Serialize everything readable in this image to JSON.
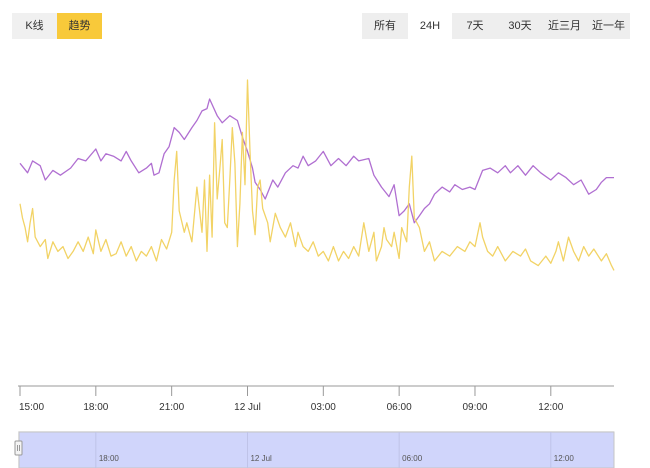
{
  "mode_toggle": {
    "items": [
      {
        "label": "K线",
        "active": false
      },
      {
        "label": "趋势",
        "active": true
      }
    ]
  },
  "range_tabs": {
    "items": [
      {
        "label": "所有",
        "active": false
      },
      {
        "label": "24H",
        "active": true
      },
      {
        "label": "7天",
        "active": false
      },
      {
        "label": "30天",
        "active": false
      },
      {
        "label": "近三月",
        "active": false
      },
      {
        "label": "近一年",
        "active": false
      }
    ]
  },
  "colors": {
    "series_purple": "#b06fd1",
    "series_yellow": "#f2d366",
    "active_tab": "#f8c93a",
    "navigator_fill": "#d0d5fb"
  },
  "chart_data": {
    "type": "line",
    "title": "",
    "xlabel": "",
    "ylabel": "",
    "x_range": [
      15,
      38.5
    ],
    "ylim": [
      0,
      100
    ],
    "legend": "none",
    "grid": false,
    "x_ticks": [
      {
        "label": "15:00",
        "x": 15
      },
      {
        "label": "18:00",
        "x": 18
      },
      {
        "label": "21:00",
        "x": 21
      },
      {
        "label": "12 Jul",
        "x": 24
      },
      {
        "label": "03:00",
        "x": 27
      },
      {
        "label": "06:00",
        "x": 30
      },
      {
        "label": "09:00",
        "x": 33
      },
      {
        "label": "12:00",
        "x": 36
      }
    ],
    "series": [
      {
        "color": "#b06fd1",
        "points": [
          [
            15,
            65
          ],
          [
            15.3,
            61
          ],
          [
            15.5,
            66
          ],
          [
            15.8,
            64
          ],
          [
            16,
            58
          ],
          [
            16.3,
            62
          ],
          [
            16.6,
            60
          ],
          [
            17,
            63
          ],
          [
            17.3,
            67
          ],
          [
            17.6,
            66
          ],
          [
            18,
            71
          ],
          [
            18.2,
            66
          ],
          [
            18.4,
            69
          ],
          [
            18.7,
            68
          ],
          [
            19,
            66
          ],
          [
            19.2,
            70
          ],
          [
            19.4,
            66
          ],
          [
            19.7,
            61
          ],
          [
            20,
            63
          ],
          [
            20.2,
            65
          ],
          [
            20.3,
            60
          ],
          [
            20.5,
            61
          ],
          [
            20.7,
            69
          ],
          [
            20.9,
            72
          ],
          [
            21.1,
            80
          ],
          [
            21.3,
            78
          ],
          [
            21.5,
            75
          ],
          [
            21.8,
            80
          ],
          [
            22,
            83
          ],
          [
            22.2,
            87
          ],
          [
            22.4,
            88
          ],
          [
            22.5,
            92
          ],
          [
            22.8,
            85
          ],
          [
            23,
            82
          ],
          [
            23.3,
            85
          ],
          [
            23.6,
            83
          ],
          [
            23.8,
            76
          ],
          [
            24,
            70
          ],
          [
            24.2,
            63
          ],
          [
            24.3,
            57
          ],
          [
            24.5,
            54
          ],
          [
            24.7,
            50
          ],
          [
            25,
            58
          ],
          [
            25.2,
            55
          ],
          [
            25.5,
            61
          ],
          [
            25.8,
            64
          ],
          [
            26,
            63
          ],
          [
            26.2,
            68
          ],
          [
            26.4,
            64
          ],
          [
            26.7,
            66
          ],
          [
            27,
            70
          ],
          [
            27.3,
            64
          ],
          [
            27.6,
            67
          ],
          [
            27.9,
            64
          ],
          [
            28.2,
            68
          ],
          [
            28.4,
            66
          ],
          [
            28.8,
            67
          ],
          [
            29,
            60
          ],
          [
            29.3,
            55
          ],
          [
            29.6,
            51
          ],
          [
            29.8,
            56
          ],
          [
            30,
            43
          ],
          [
            30.2,
            45
          ],
          [
            30.4,
            48
          ],
          [
            30.6,
            40
          ],
          [
            30.8,
            43
          ],
          [
            31,
            46
          ],
          [
            31.2,
            48
          ],
          [
            31.4,
            52
          ],
          [
            31.7,
            55
          ],
          [
            32,
            53
          ],
          [
            32.2,
            56
          ],
          [
            32.5,
            54
          ],
          [
            32.8,
            55
          ],
          [
            33,
            54
          ],
          [
            33.3,
            62
          ],
          [
            33.6,
            63
          ],
          [
            33.9,
            61
          ],
          [
            34.2,
            64
          ],
          [
            34.4,
            61
          ],
          [
            34.7,
            64
          ],
          [
            35,
            60
          ],
          [
            35.3,
            64
          ],
          [
            35.6,
            61
          ],
          [
            36,
            58
          ],
          [
            36.3,
            61
          ],
          [
            36.6,
            59
          ],
          [
            36.9,
            56
          ],
          [
            37.2,
            58
          ],
          [
            37.5,
            52
          ],
          [
            37.8,
            54
          ],
          [
            38,
            57
          ],
          [
            38.2,
            59
          ],
          [
            38.5,
            59
          ]
        ]
      },
      {
        "color": "#f2d366",
        "points": [
          [
            15,
            48
          ],
          [
            15.1,
            42
          ],
          [
            15.2,
            38
          ],
          [
            15.3,
            32
          ],
          [
            15.4,
            40
          ],
          [
            15.5,
            46
          ],
          [
            15.6,
            34
          ],
          [
            15.8,
            30
          ],
          [
            16,
            33
          ],
          [
            16.1,
            25
          ],
          [
            16.3,
            32
          ],
          [
            16.5,
            28
          ],
          [
            16.7,
            30
          ],
          [
            16.9,
            25
          ],
          [
            17.1,
            28
          ],
          [
            17.3,
            32
          ],
          [
            17.5,
            28
          ],
          [
            17.7,
            34
          ],
          [
            17.9,
            27
          ],
          [
            18,
            37
          ],
          [
            18.2,
            28
          ],
          [
            18.4,
            33
          ],
          [
            18.6,
            26
          ],
          [
            18.8,
            27
          ],
          [
            19,
            32
          ],
          [
            19.2,
            26
          ],
          [
            19.4,
            30
          ],
          [
            19.6,
            24
          ],
          [
            19.8,
            28
          ],
          [
            20,
            26
          ],
          [
            20.2,
            30
          ],
          [
            20.4,
            24
          ],
          [
            20.6,
            33
          ],
          [
            20.8,
            29
          ],
          [
            21,
            36
          ],
          [
            21.1,
            58
          ],
          [
            21.2,
            70
          ],
          [
            21.3,
            45
          ],
          [
            21.5,
            36
          ],
          [
            21.6,
            40
          ],
          [
            21.8,
            32
          ],
          [
            22,
            55
          ],
          [
            22.2,
            36
          ],
          [
            22.3,
            58
          ],
          [
            22.4,
            28
          ],
          [
            22.5,
            60
          ],
          [
            22.6,
            34
          ],
          [
            22.7,
            82
          ],
          [
            22.8,
            50
          ],
          [
            22.9,
            62
          ],
          [
            23,
            75
          ],
          [
            23.1,
            40
          ],
          [
            23.2,
            38
          ],
          [
            23.3,
            58
          ],
          [
            23.4,
            80
          ],
          [
            23.5,
            65
          ],
          [
            23.6,
            30
          ],
          [
            23.7,
            48
          ],
          [
            23.8,
            78
          ],
          [
            23.9,
            56
          ],
          [
            24,
            100
          ],
          [
            24.1,
            70
          ],
          [
            24.2,
            45
          ],
          [
            24.3,
            35
          ],
          [
            24.4,
            55
          ],
          [
            24.5,
            58
          ],
          [
            24.6,
            46
          ],
          [
            24.8,
            40
          ],
          [
            24.9,
            32
          ],
          [
            25.1,
            44
          ],
          [
            25.3,
            38
          ],
          [
            25.5,
            34
          ],
          [
            25.7,
            40
          ],
          [
            25.9,
            30
          ],
          [
            26,
            36
          ],
          [
            26.2,
            30
          ],
          [
            26.4,
            28
          ],
          [
            26.6,
            32
          ],
          [
            26.8,
            26
          ],
          [
            27,
            28
          ],
          [
            27.2,
            24
          ],
          [
            27.4,
            30
          ],
          [
            27.6,
            24
          ],
          [
            27.8,
            28
          ],
          [
            28,
            25
          ],
          [
            28.2,
            30
          ],
          [
            28.4,
            26
          ],
          [
            28.6,
            40
          ],
          [
            28.7,
            34
          ],
          [
            28.8,
            28
          ],
          [
            29,
            36
          ],
          [
            29.1,
            24
          ],
          [
            29.3,
            30
          ],
          [
            29.4,
            38
          ],
          [
            29.5,
            33
          ],
          [
            29.7,
            30
          ],
          [
            29.8,
            36
          ],
          [
            30,
            25
          ],
          [
            30.1,
            38
          ],
          [
            30.3,
            32
          ],
          [
            30.4,
            55
          ],
          [
            30.5,
            68
          ],
          [
            30.6,
            42
          ],
          [
            30.8,
            38
          ],
          [
            31,
            28
          ],
          [
            31.2,
            32
          ],
          [
            31.4,
            24
          ],
          [
            31.7,
            28
          ],
          [
            32,
            26
          ],
          [
            32.3,
            30
          ],
          [
            32.6,
            28
          ],
          [
            32.8,
            32
          ],
          [
            33,
            30
          ],
          [
            33.2,
            40
          ],
          [
            33.3,
            34
          ],
          [
            33.5,
            28
          ],
          [
            33.7,
            26
          ],
          [
            33.9,
            30
          ],
          [
            34.2,
            24
          ],
          [
            34.5,
            28
          ],
          [
            34.8,
            26
          ],
          [
            35,
            29
          ],
          [
            35.2,
            24
          ],
          [
            35.5,
            22
          ],
          [
            35.8,
            26
          ],
          [
            36,
            23
          ],
          [
            36.2,
            28
          ],
          [
            36.3,
            32
          ],
          [
            36.5,
            24
          ],
          [
            36.7,
            34
          ],
          [
            36.9,
            28
          ],
          [
            37.1,
            24
          ],
          [
            37.3,
            30
          ],
          [
            37.5,
            26
          ],
          [
            37.7,
            29
          ],
          [
            38,
            24
          ],
          [
            38.2,
            27
          ],
          [
            38.4,
            22
          ],
          [
            38.5,
            20
          ]
        ]
      }
    ]
  }
}
